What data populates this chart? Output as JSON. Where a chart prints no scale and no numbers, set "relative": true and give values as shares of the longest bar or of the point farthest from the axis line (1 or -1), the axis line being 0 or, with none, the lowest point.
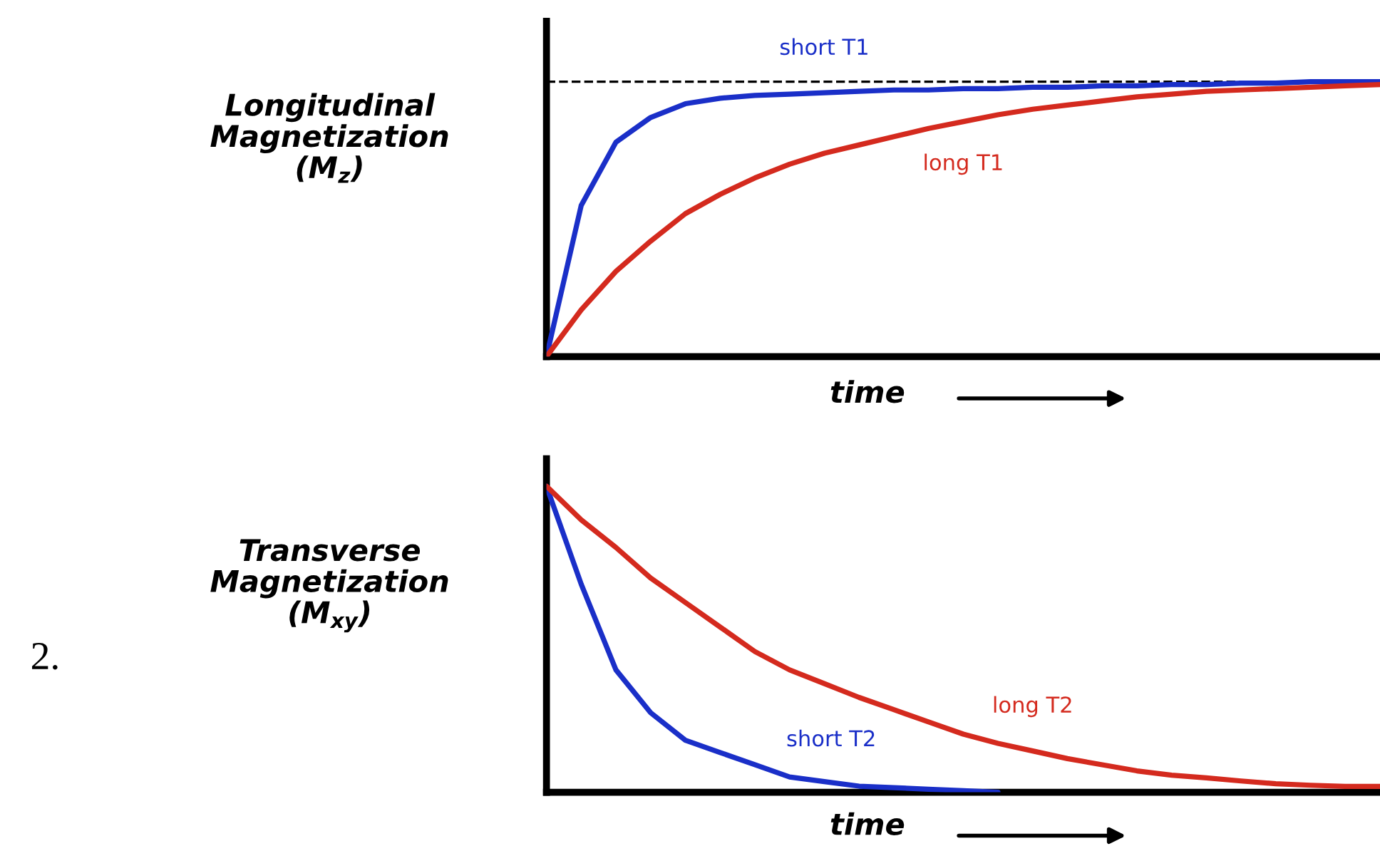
{
  "chart_data": [
    {
      "type": "line",
      "relative": true,
      "ylabel": "Longitudinal\nMagnetization\n(M$_{z}$)",
      "xlabel": "time",
      "tick_labels": false,
      "legend": false,
      "marker": "none",
      "categories": [
        null,
        null,
        null,
        null,
        null,
        null,
        null,
        null,
        null,
        null,
        null,
        null,
        null,
        null,
        null,
        null,
        null,
        null,
        null,
        null,
        null,
        null,
        null,
        null,
        null
      ],
      "ref_lines": [
        {
          "axis": "y",
          "value": 1,
          "color": "#000000",
          "line_style": "dashed"
        }
      ],
      "series": [
        {
          "name": "short T1",
          "color": "#1a2fc8",
          "values": [
            0,
            0.55,
            0.78,
            0.87,
            0.92,
            0.94,
            0.95,
            0.955,
            0.96,
            0.965,
            0.97,
            0.97,
            0.975,
            0.975,
            0.98,
            0.98,
            0.985,
            0.985,
            0.99,
            0.99,
            0.995,
            0.995,
            1.0,
            1.0,
            1.0
          ]
        },
        {
          "name": "long T1",
          "color": "#d42a1e",
          "values": [
            0,
            0.17,
            0.31,
            0.42,
            0.52,
            0.59,
            0.65,
            0.7,
            0.74,
            0.77,
            0.8,
            0.83,
            0.855,
            0.88,
            0.9,
            0.915,
            0.93,
            0.945,
            0.955,
            0.965,
            0.97,
            0.975,
            0.98,
            0.985,
            0.99
          ]
        }
      ]
    },
    {
      "type": "line",
      "relative": true,
      "ylabel": "Transverse\nMagnetization\n(M$_{xy}$)",
      "xlabel": "time",
      "tick_labels": false,
      "legend": false,
      "marker": "none",
      "annotations": [
        "2."
      ],
      "categories": [
        null,
        null,
        null,
        null,
        null,
        null,
        null,
        null,
        null,
        null,
        null,
        null,
        null,
        null,
        null,
        null,
        null,
        null,
        null,
        null,
        null,
        null,
        null,
        null,
        null
      ],
      "series": [
        {
          "name": "short T2",
          "color": "#1a2fc8",
          "values": [
            1,
            0.68,
            0.4,
            0.26,
            0.17,
            0.13,
            0.09,
            0.05,
            0.035,
            0.02,
            0.015,
            0.01,
            0.005,
            0,
            null,
            null,
            null,
            null,
            null,
            null,
            null,
            null,
            null,
            null,
            null
          ]
        },
        {
          "name": "long T2",
          "color": "#d42a1e",
          "values": [
            1,
            0.89,
            0.8,
            0.7,
            0.62,
            0.54,
            0.46,
            0.4,
            0.355,
            0.31,
            0.27,
            0.23,
            0.19,
            0.16,
            0.135,
            0.11,
            0.09,
            0.07,
            0.056,
            0.047,
            0.037,
            0.028,
            0.023,
            0.019,
            0.019
          ]
        }
      ]
    }
  ]
}
